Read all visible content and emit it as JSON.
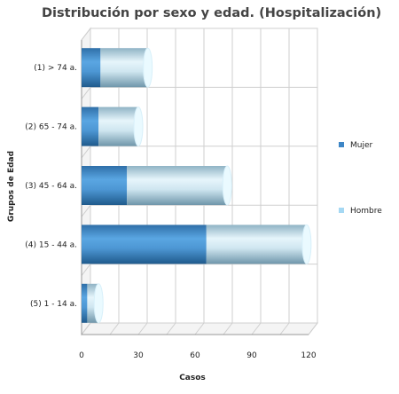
{
  "chart_data": {
    "type": "bar",
    "orientation": "horizontal",
    "stacked": true,
    "style": "3d-cylinder",
    "title": "Distribución por sexo y edad. (Hospitalización)",
    "xlabel": "Casos",
    "ylabel": "Grupos de Edad",
    "xlim": [
      0,
      120
    ],
    "x_ticks": [
      "0",
      "30",
      "60",
      "90",
      "120"
    ],
    "categories": [
      "(1) > 74 a.",
      "(2) 65 - 74 a.",
      "(3) 45 - 64 a.",
      "(4) 15 - 44 a.",
      "(5) 1 - 14 a."
    ],
    "series": [
      {
        "name": "Mujer",
        "values": [
          10,
          9,
          24,
          66,
          3
        ],
        "color": "#3d86c6"
      },
      {
        "name": "Hombre",
        "values": [
          25,
          21,
          53,
          53,
          6
        ],
        "color": "#a5d8f3"
      }
    ],
    "grid": true,
    "legend_position": "right"
  }
}
